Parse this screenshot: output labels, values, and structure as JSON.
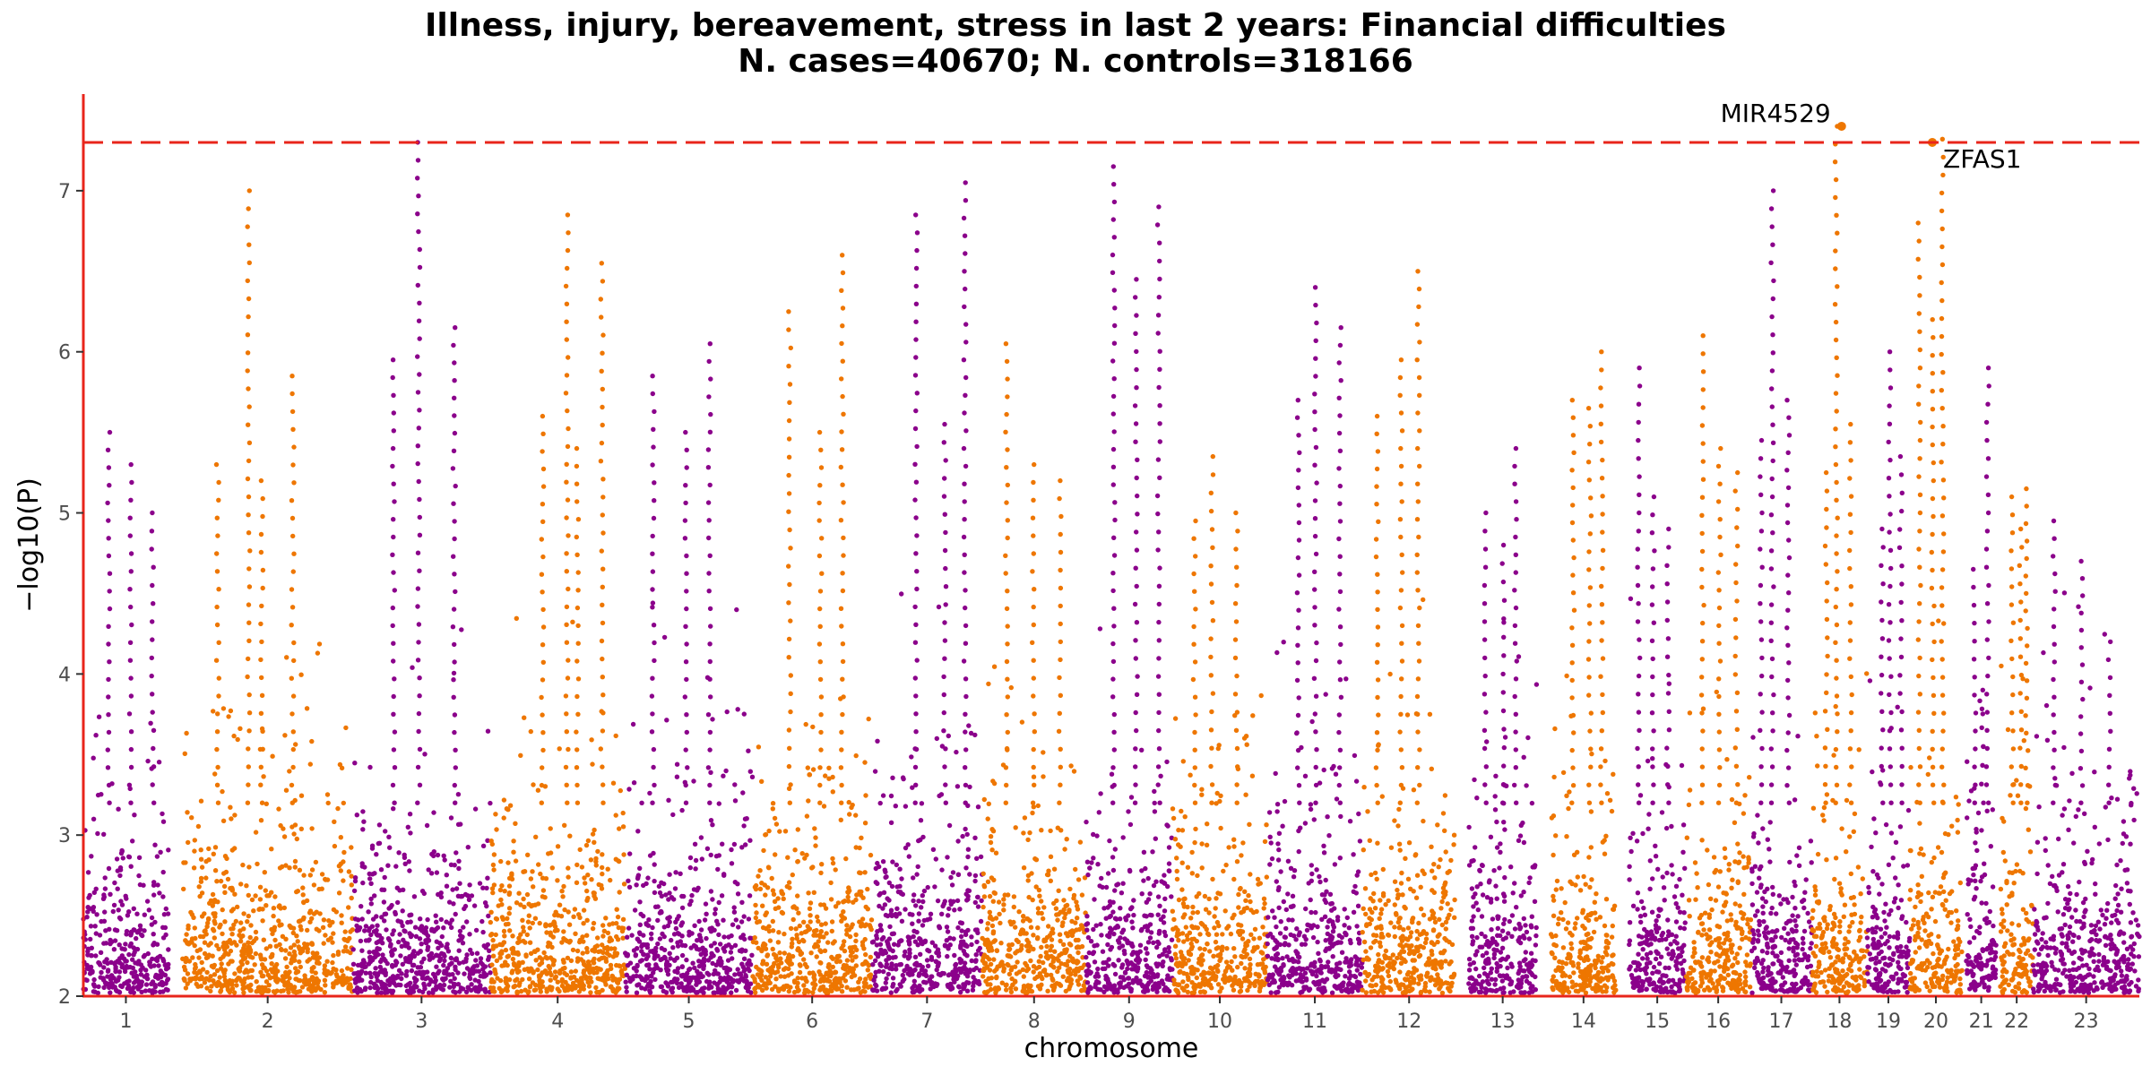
{
  "chart_data": {
    "type": "scatter",
    "subtype": "manhattan",
    "title": "Illness, injury, bereavement, stress in last 2 years: Financial difficulties",
    "subtitle": "N. cases=40670; N. controls=318166",
    "xlabel": "chromosome",
    "ylabel": "−log10(P)",
    "ylim": [
      2,
      7.6
    ],
    "yticks": [
      2,
      3,
      4,
      5,
      6,
      7
    ],
    "significance_threshold": 7.3,
    "colors": {
      "odd": "#8B008B",
      "even": "#EE7600",
      "threshold": "#E8251B",
      "axis": "#E8251B"
    },
    "chromosomes": [
      {
        "label": "1",
        "range": [
          0,
          6.0
        ],
        "peaks": [
          5.5,
          5.3,
          5.0
        ]
      },
      {
        "label": "2",
        "range": [
          7.0,
          19.0
        ],
        "peaks": [
          7.0,
          5.85,
          5.3,
          5.2
        ]
      },
      {
        "label": "3",
        "range": [
          19.0,
          28.7
        ],
        "peaks": [
          7.3,
          6.15,
          5.95
        ]
      },
      {
        "label": "4",
        "range": [
          28.7,
          38.2
        ],
        "peaks": [
          6.85,
          6.55,
          5.6,
          5.4
        ]
      },
      {
        "label": "5",
        "range": [
          38.2,
          47.2
        ],
        "peaks": [
          6.05,
          5.85,
          5.5
        ]
      },
      {
        "label": "6",
        "range": [
          47.2,
          55.6
        ],
        "peaks": [
          6.6,
          6.25,
          5.5
        ]
      },
      {
        "label": "7",
        "range": [
          55.6,
          63.4
        ],
        "peaks": [
          7.05,
          6.85,
          5.55
        ]
      },
      {
        "label": "8",
        "range": [
          63.4,
          70.7
        ],
        "peaks": [
          6.05,
          5.3,
          5.2
        ]
      },
      {
        "label": "9",
        "range": [
          70.7,
          76.8
        ],
        "peaks": [
          7.15,
          6.45,
          6.9
        ]
      },
      {
        "label": "10",
        "range": [
          76.8,
          83.5
        ],
        "peaks": [
          5.35,
          5.0,
          4.95
        ]
      },
      {
        "label": "11",
        "range": [
          83.5,
          90.2
        ],
        "peaks": [
          6.4,
          6.15,
          5.7
        ]
      },
      {
        "label": "12",
        "range": [
          90.2,
          96.8
        ],
        "peaks": [
          6.5,
          5.6,
          5.95
        ]
      },
      {
        "label": "13",
        "range": [
          97.7,
          102.5
        ],
        "peaks": [
          5.4,
          5.0,
          4.8
        ]
      },
      {
        "label": "14",
        "range": [
          103.5,
          108.1
        ],
        "peaks": [
          6.0,
          5.7,
          5.65
        ]
      },
      {
        "label": "15",
        "range": [
          109.0,
          113.0
        ],
        "peaks": [
          5.9,
          5.1,
          4.9
        ]
      },
      {
        "label": "16",
        "range": [
          113.0,
          117.6
        ],
        "peaks": [
          6.1,
          5.4,
          5.25
        ]
      },
      {
        "label": "17",
        "range": [
          117.6,
          121.9
        ],
        "peaks": [
          7.0,
          5.7,
          5.45
        ]
      },
      {
        "label": "18",
        "range": [
          121.9,
          125.8
        ],
        "peaks": [
          7.4,
          5.55,
          5.25
        ]
      },
      {
        "label": "19",
        "range": [
          125.8,
          128.8
        ],
        "peaks": [
          6.0,
          5.35,
          4.9
        ]
      },
      {
        "label": "20",
        "range": [
          128.8,
          132.5
        ],
        "peaks": [
          7.32,
          6.8,
          6.2
        ]
      },
      {
        "label": "21",
        "range": [
          132.8,
          134.9
        ],
        "peaks": [
          5.9,
          4.65,
          3.9
        ]
      },
      {
        "label": "22",
        "range": [
          135.2,
          137.5
        ],
        "peaks": [
          5.15,
          5.1,
          4.9
        ]
      },
      {
        "label": "23",
        "range": [
          137.5,
          145.0
        ],
        "peaks": [
          4.95,
          4.7,
          4.2
        ]
      }
    ],
    "annotations": [
      {
        "text": "MIR4529",
        "x": 124.0,
        "y": 7.4,
        "anchor": "end"
      },
      {
        "text": "ZFAS1",
        "x": 130.4,
        "y": 7.3,
        "anchor": "start"
      }
    ]
  }
}
